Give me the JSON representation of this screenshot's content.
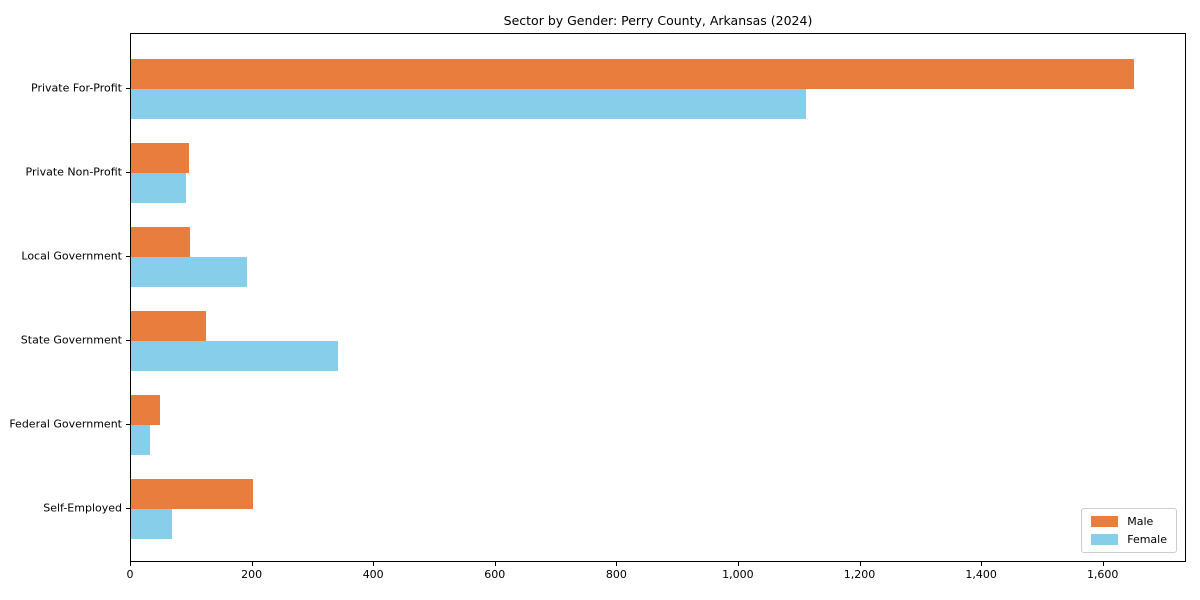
{
  "chart_title": "Sector by Gender: Perry County, Arkansas (2024)",
  "colors": {
    "male": "#e87d3e",
    "female": "#87ceeb",
    "axis": "#000000",
    "legend_border": "#cccccc",
    "background": "#ffffff"
  },
  "legend": {
    "position": "lower right",
    "items": [
      {
        "label": "Male",
        "color_key": "male"
      },
      {
        "label": "Female",
        "color_key": "female"
      }
    ]
  },
  "chart_data": {
    "type": "bar",
    "orientation": "horizontal",
    "title": "Sector by Gender: Perry County, Arkansas (2024)",
    "categories": [
      "Private For-Profit",
      "Private Non-Profit",
      "Local Government",
      "State Government",
      "Federal Government",
      "Self-Employed"
    ],
    "series": [
      {
        "name": "Male",
        "color": "#e87d3e",
        "values": [
          1650,
          95,
          97,
          123,
          48,
          200
        ]
      },
      {
        "name": "Female",
        "color": "#87ceeb",
        "values": [
          1110,
          90,
          190,
          340,
          31,
          67
        ]
      }
    ],
    "xlabel": "",
    "ylabel": "",
    "xlim": [
      0,
      1737
    ],
    "x_ticks": [
      0,
      200,
      400,
      600,
      800,
      1000,
      1200,
      1400,
      1600
    ],
    "x_tick_labels": [
      "0",
      "200",
      "400",
      "600",
      "800",
      "1,000",
      "1,200",
      "1,400",
      "1,600"
    ],
    "grid": false,
    "legend_position": "lower right"
  }
}
